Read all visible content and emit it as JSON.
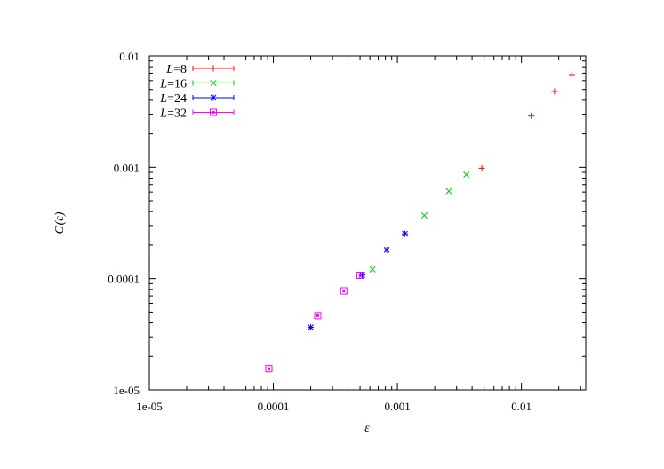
{
  "chart_data": {
    "type": "scatter",
    "title": "",
    "xlabel": "ε",
    "ylabel": "G(ε)",
    "x_scale": "log",
    "y_scale": "log",
    "xlim": [
      1e-05,
      0.033
    ],
    "ylim": [
      1e-05,
      0.01
    ],
    "x_ticks": [
      {
        "value": 1e-05,
        "label": "1e-05"
      },
      {
        "value": 0.0001,
        "label": "0.0001"
      },
      {
        "value": 0.001,
        "label": "0.001"
      },
      {
        "value": 0.01,
        "label": "0.01"
      }
    ],
    "y_ticks": [
      {
        "value": 1e-05,
        "label": "1e-05"
      },
      {
        "value": 0.0001,
        "label": "0.0001"
      },
      {
        "value": 0.001,
        "label": "0.001"
      },
      {
        "value": 0.01,
        "label": "0.01"
      }
    ],
    "grid": false,
    "legend_position": "top-left",
    "series": [
      {
        "name": "L=8",
        "legend_var": "L",
        "legend_value": "=8",
        "color": "#ff0000",
        "marker": "plus",
        "points": [
          {
            "x": 0.0048,
            "y": 0.00098
          },
          {
            "x": 0.012,
            "y": 0.0029
          },
          {
            "x": 0.0185,
            "y": 0.0048
          },
          {
            "x": 0.0255,
            "y": 0.0068
          }
        ]
      },
      {
        "name": "L=16",
        "legend_var": "L",
        "legend_value": "=16",
        "color": "#00cc00",
        "marker": "cross",
        "points": [
          {
            "x": 0.00063,
            "y": 0.000121
          },
          {
            "x": 0.00165,
            "y": 0.00037
          },
          {
            "x": 0.0026,
            "y": 0.00061
          },
          {
            "x": 0.0036,
            "y": 0.00086
          }
        ]
      },
      {
        "name": "L=24",
        "legend_var": "L",
        "legend_value": "=24",
        "color": "#0000ff",
        "marker": "star",
        "points": [
          {
            "x": 0.0002,
            "y": 3.65e-05
          },
          {
            "x": 0.00052,
            "y": 0.000108
          },
          {
            "x": 0.00082,
            "y": 0.000181
          },
          {
            "x": 0.00115,
            "y": 0.000253
          }
        ]
      },
      {
        "name": "L=32",
        "legend_var": "L",
        "legend_value": "=32",
        "color": "#ff00ff",
        "marker": "boxed-dot",
        "points": [
          {
            "x": 9.2e-05,
            "y": 1.55e-05
          },
          {
            "x": 0.000228,
            "y": 4.65e-05
          },
          {
            "x": 0.00037,
            "y": 7.75e-05
          },
          {
            "x": 0.0005,
            "y": 0.000107
          }
        ]
      }
    ]
  }
}
